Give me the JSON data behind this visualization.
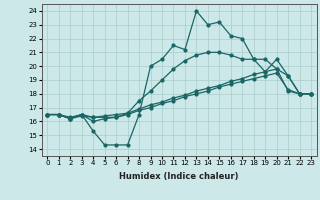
{
  "xlabel": "Humidex (Indice chaleur)",
  "xlim": [
    -0.5,
    23.5
  ],
  "ylim": [
    13.5,
    24.5
  ],
  "xticks": [
    0,
    1,
    2,
    3,
    4,
    5,
    6,
    7,
    8,
    9,
    10,
    11,
    12,
    13,
    14,
    15,
    16,
    17,
    18,
    19,
    20,
    21,
    22,
    23
  ],
  "yticks": [
    14,
    15,
    16,
    17,
    18,
    19,
    20,
    21,
    22,
    23,
    24
  ],
  "bg_color": "#cce8e8",
  "grid_color": "#aacccc",
  "line_color": "#1a6666",
  "line1_x": [
    0,
    1,
    2,
    3,
    4,
    5,
    6,
    7,
    8,
    9,
    10,
    11,
    12,
    13,
    14,
    15,
    16,
    17,
    18,
    19,
    20,
    21,
    22,
    23
  ],
  "line1_y": [
    16.5,
    16.5,
    16.2,
    16.5,
    15.3,
    14.3,
    14.3,
    14.3,
    16.5,
    20.0,
    20.5,
    21.5,
    21.2,
    24.0,
    23.0,
    23.2,
    22.2,
    22.0,
    20.5,
    19.6,
    20.5,
    19.3,
    18.0,
    18.0
  ],
  "line2_x": [
    0,
    1,
    2,
    3,
    4,
    5,
    6,
    7,
    8,
    9,
    10,
    11,
    12,
    13,
    14,
    15,
    16,
    17,
    18,
    19,
    20,
    21,
    22,
    23
  ],
  "line2_y": [
    16.5,
    16.5,
    16.2,
    16.5,
    16.0,
    16.2,
    16.3,
    16.6,
    17.5,
    18.2,
    19.0,
    19.8,
    20.4,
    20.8,
    21.0,
    21.0,
    20.8,
    20.5,
    20.5,
    20.5,
    19.8,
    19.3,
    18.0,
    18.0
  ],
  "line3_x": [
    0,
    1,
    2,
    3,
    4,
    5,
    6,
    7,
    8,
    9,
    10,
    11,
    12,
    13,
    14,
    15,
    16,
    17,
    18,
    19,
    20,
    21,
    22,
    23
  ],
  "line3_y": [
    16.5,
    16.5,
    16.3,
    16.5,
    16.3,
    16.3,
    16.3,
    16.5,
    16.8,
    17.0,
    17.3,
    17.5,
    17.8,
    18.0,
    18.2,
    18.5,
    18.7,
    18.9,
    19.1,
    19.3,
    19.5,
    18.3,
    18.0,
    18.0
  ],
  "line4_x": [
    0,
    1,
    2,
    3,
    4,
    5,
    6,
    7,
    8,
    9,
    10,
    11,
    12,
    13,
    14,
    15,
    16,
    17,
    18,
    19,
    20,
    21,
    22,
    23
  ],
  "line4_y": [
    16.5,
    16.5,
    16.2,
    16.4,
    16.3,
    16.4,
    16.5,
    16.6,
    16.9,
    17.2,
    17.4,
    17.7,
    17.9,
    18.2,
    18.4,
    18.6,
    18.9,
    19.1,
    19.4,
    19.6,
    19.8,
    18.2,
    18.0,
    18.0
  ]
}
